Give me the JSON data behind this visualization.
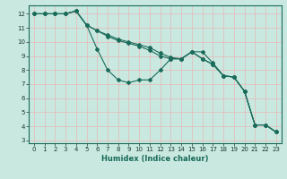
{
  "title": "",
  "xlabel": "Humidex (Indice chaleur)",
  "ylabel": "",
  "bg_color": "#c8e8e0",
  "grid_color": "#e8b8b8",
  "line_color": "#1a6b5a",
  "xlim": [
    -0.5,
    23.5
  ],
  "ylim": [
    2.8,
    12.6
  ],
  "yticks": [
    3,
    4,
    5,
    6,
    7,
    8,
    9,
    10,
    11,
    12
  ],
  "xticks": [
    0,
    1,
    2,
    3,
    4,
    5,
    6,
    7,
    8,
    9,
    10,
    11,
    12,
    13,
    14,
    15,
    16,
    17,
    18,
    19,
    20,
    21,
    22,
    23
  ],
  "series": [
    {
      "x": [
        0,
        1,
        2,
        3,
        4,
        5,
        6,
        7,
        8,
        9,
        10,
        11,
        12,
        13,
        14,
        15,
        16,
        17,
        18,
        19,
        20,
        21,
        22,
        23
      ],
      "y": [
        12,
        12,
        12,
        12,
        12.2,
        11.2,
        10.8,
        10.5,
        10.2,
        10.0,
        9.8,
        9.6,
        9.2,
        8.9,
        8.8,
        9.3,
        8.8,
        8.4,
        7.6,
        7.5,
        6.5,
        4.1,
        4.1,
        3.6
      ]
    },
    {
      "x": [
        0,
        1,
        2,
        3,
        4,
        5,
        6,
        7,
        8,
        9,
        10,
        11,
        12,
        13,
        14,
        15,
        16,
        17,
        18,
        19,
        20,
        21,
        22,
        23
      ],
      "y": [
        12,
        12,
        12,
        12,
        12.2,
        11.2,
        10.8,
        10.4,
        10.1,
        9.9,
        9.7,
        9.4,
        9.0,
        8.8,
        8.8,
        9.3,
        9.3,
        8.5,
        7.6,
        7.5,
        6.5,
        4.1,
        4.1,
        3.6
      ]
    },
    {
      "x": [
        0,
        1,
        2,
        3,
        4,
        5,
        6,
        7,
        8,
        9,
        10,
        11,
        12,
        13,
        14,
        15,
        16,
        17,
        18,
        19,
        20,
        21,
        22,
        23
      ],
      "y": [
        12,
        12,
        12,
        12,
        12.2,
        11.2,
        9.5,
        8.0,
        7.3,
        7.1,
        7.3,
        7.3,
        8.0,
        8.8,
        8.8,
        9.3,
        8.8,
        8.4,
        7.6,
        7.5,
        6.5,
        4.1,
        4.1,
        3.6
      ]
    }
  ]
}
